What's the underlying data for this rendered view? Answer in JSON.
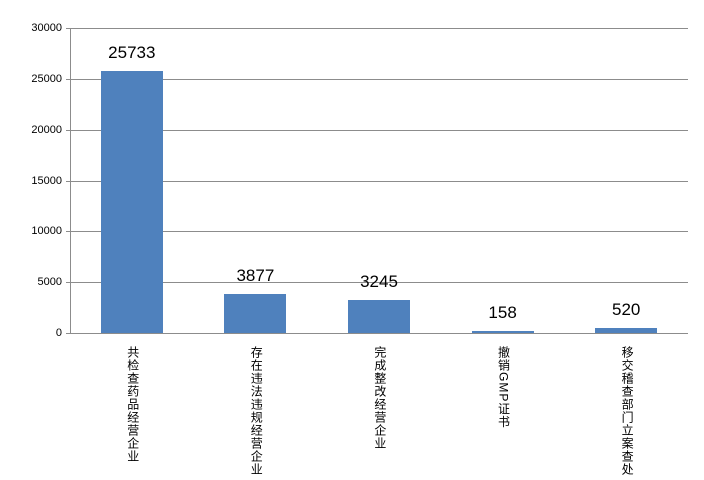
{
  "chart_data": {
    "type": "bar",
    "categories": [
      "共检查药品经营企业",
      "存在违法违规经营企业",
      "完成整改经营企业",
      "撤销GMP证书",
      "移交稽查部门立案查处"
    ],
    "values": [
      25733,
      3877,
      3245,
      158,
      520
    ],
    "data_labels": [
      "25733",
      "3877",
      "3245",
      "158",
      "520"
    ],
    "title": "",
    "xlabel": "",
    "ylabel": "",
    "ylim": [
      0,
      30000
    ],
    "yticks": [
      0,
      5000,
      10000,
      15000,
      20000,
      25000,
      30000
    ],
    "grid": true,
    "legend_position": "none",
    "bar_color": "#4f81bd",
    "gridline_color": "#8c8c8c",
    "axis_color": "#8c8c8c",
    "text_color": "#000000",
    "background_color": "#ffffff"
  }
}
